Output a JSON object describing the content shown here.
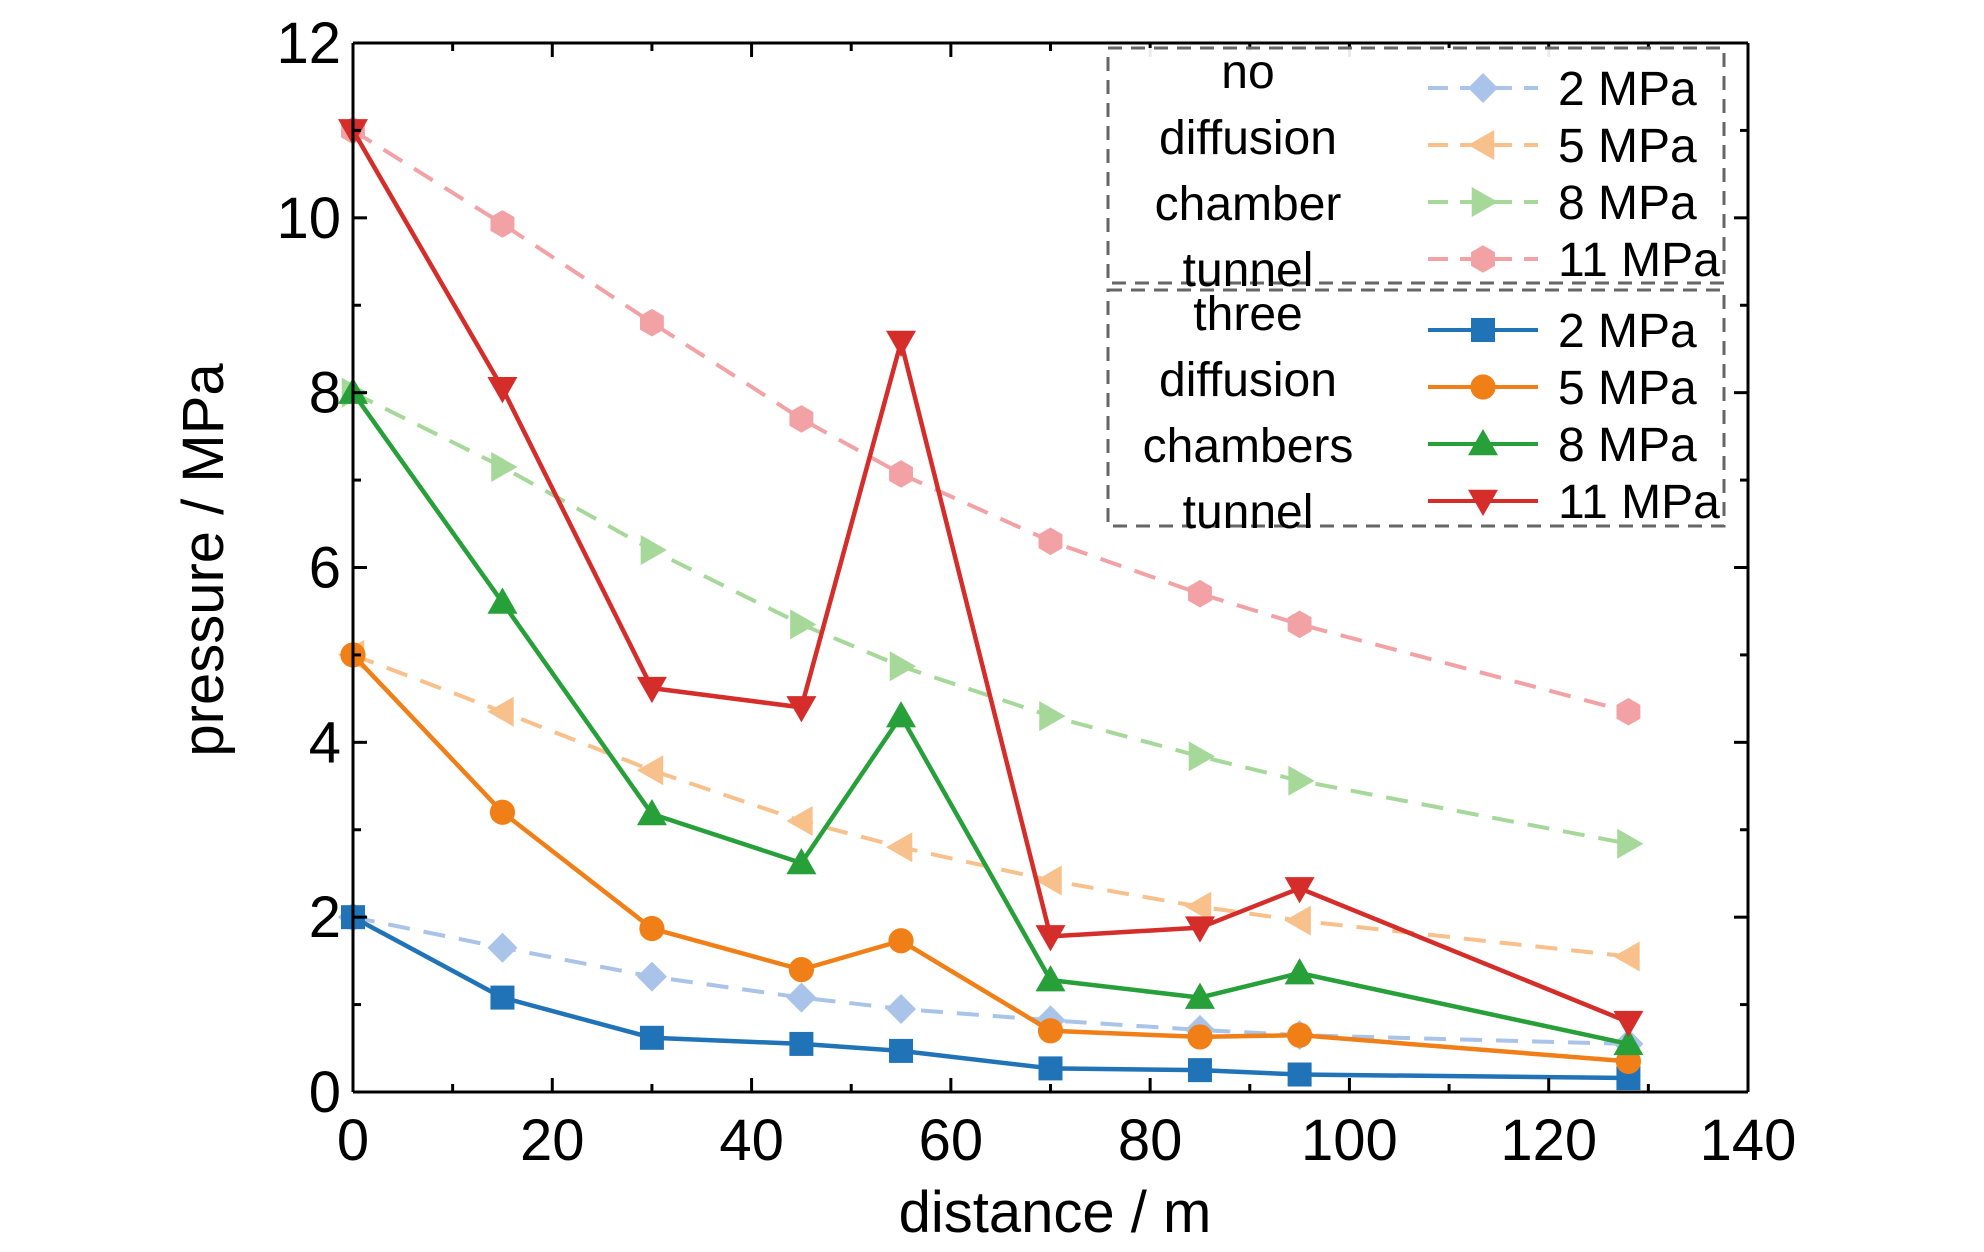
{
  "chart_data": {
    "type": "line",
    "xlabel": "distance / m",
    "ylabel": "pressure / MPa",
    "xlim": [
      0,
      140
    ],
    "ylim": [
      0,
      12
    ],
    "xticks": [
      0,
      20,
      40,
      60,
      80,
      100,
      120,
      140
    ],
    "yticks": [
      0,
      2,
      4,
      6,
      8,
      10,
      12
    ],
    "x": [
      0,
      15,
      30,
      45,
      55,
      70,
      85,
      95,
      128
    ],
    "legend_groups": [
      {
        "title_lines": [
          "no",
          "diffusion",
          "chamber",
          "tunnel"
        ],
        "series": [
          {
            "name": "2 MPa",
            "color": "#a9c3e9",
            "marker": "diamond",
            "dashed": true,
            "values": [
              2.0,
              1.65,
              1.32,
              1.08,
              0.95,
              0.82,
              0.71,
              0.65,
              0.55
            ]
          },
          {
            "name": "5 MPa",
            "color": "#f8c08b",
            "marker": "triangle-left",
            "dashed": true,
            "values": [
              5.0,
              4.35,
              3.68,
              3.1,
              2.8,
              2.42,
              2.12,
              1.96,
              1.55
            ]
          },
          {
            "name": "8 MPa",
            "color": "#a6d89a",
            "marker": "triangle-right",
            "dashed": true,
            "values": [
              8.0,
              7.15,
              6.2,
              5.35,
              4.87,
              4.3,
              3.84,
              3.56,
              2.84
            ]
          },
          {
            "name": "11 MPa",
            "color": "#f2a2a5",
            "marker": "hexagon",
            "dashed": true,
            "values": [
              11.0,
              9.93,
              8.8,
              7.7,
              7.07,
              6.3,
              5.7,
              5.35,
              4.35
            ]
          }
        ]
      },
      {
        "title_lines": [
          "three",
          "diffusion",
          "chambers",
          "tunnel"
        ],
        "series": [
          {
            "name": "2 MPa",
            "color": "#2173b8",
            "marker": "square",
            "dashed": false,
            "values": [
              2.0,
              1.08,
              0.62,
              0.55,
              0.47,
              0.27,
              0.25,
              0.2,
              0.16
            ]
          },
          {
            "name": "5 MPa",
            "color": "#f07f17",
            "marker": "circle",
            "dashed": false,
            "values": [
              5.0,
              3.2,
              1.87,
              1.4,
              1.73,
              0.7,
              0.63,
              0.65,
              0.35
            ]
          },
          {
            "name": "8 MPa",
            "color": "#27a03a",
            "marker": "triangle-up",
            "dashed": false,
            "values": [
              8.0,
              5.6,
              3.18,
              2.62,
              4.3,
              1.28,
              1.08,
              1.36,
              0.55
            ]
          },
          {
            "name": "11 MPa",
            "color": "#d42d2a",
            "marker": "triangle-down",
            "dashed": false,
            "values": [
              11.0,
              8.05,
              4.62,
              4.4,
              8.58,
              1.78,
              1.88,
              2.33,
              0.8
            ]
          }
        ]
      }
    ]
  }
}
